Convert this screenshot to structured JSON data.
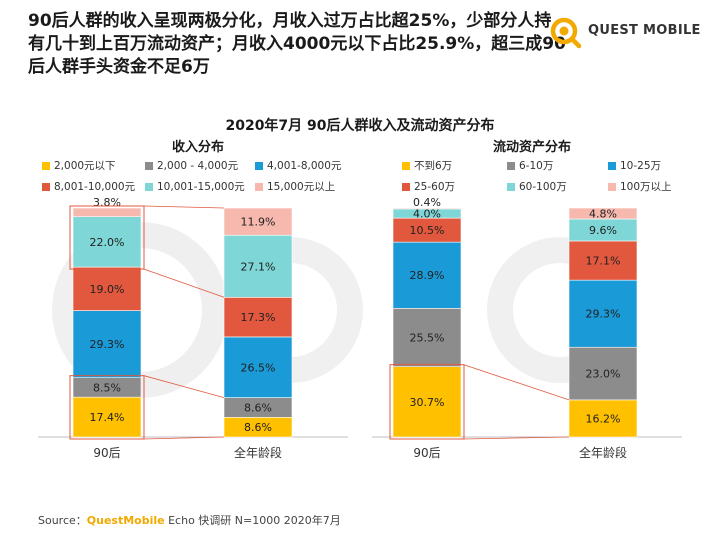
{
  "headline": "90后人群的收入呈现两极分化，月收入过万占比超25%，少部分人持有几十到上百万流动资产；月收入4000元以下占比25.9%，超三成90后人群手头资金不足6万",
  "logo": {
    "name": "QUEST MOBILE"
  },
  "colors": {
    "accent": "#f2a900",
    "yellow": "#ffc000",
    "gray": "#8c8c8c",
    "blue": "#1a9ad6",
    "red": "#e2583e",
    "cyan": "#7fd6d6",
    "pink": "#f7b8ae",
    "highlight": "#e2583e"
  },
  "source": {
    "prefix": "Source：",
    "brand": "QuestMobile",
    "text": " Echo 快调研 N=1000 2020年7月"
  },
  "chart_data": [
    {
      "type": "bar",
      "stacked": true,
      "title": "2020年7月 90后人群收入及流动资产分布",
      "subtitle": "收入分布",
      "categories": [
        "90后",
        "全年龄段"
      ],
      "ylim": [
        0,
        100
      ],
      "legend_position": "top",
      "series": [
        {
          "name": "2,000元以下",
          "color": "#ffc000",
          "values": [
            17.4,
            8.6
          ]
        },
        {
          "name": "2,000 - 4,000元",
          "color": "#8c8c8c",
          "values": [
            8.5,
            8.6
          ]
        },
        {
          "name": "4,001-8,000元",
          "color": "#1a9ad6",
          "values": [
            29.3,
            26.5
          ]
        },
        {
          "name": "8,001-10,000元",
          "color": "#e2583e",
          "values": [
            19.0,
            17.3
          ]
        },
        {
          "name": "10,001-15,000元",
          "color": "#7fd6d6",
          "values": [
            22.0,
            27.1
          ]
        },
        {
          "name": "15,000元以上",
          "color": "#f7b8ae",
          "values": [
            3.8,
            11.9
          ]
        }
      ],
      "labels": [
        [
          "17.4%",
          "8.5%",
          "29.3%",
          "19.0%",
          "22.0%",
          "3.8%"
        ],
        [
          "8.6%",
          "8.6%",
          "26.5%",
          "17.3%",
          "27.1%",
          "11.9%"
        ]
      ],
      "highlight_groups": [
        [
          0,
          1
        ],
        [
          4,
          5
        ]
      ]
    },
    {
      "type": "bar",
      "stacked": true,
      "subtitle": "流动资产分布",
      "categories": [
        "90后",
        "全年龄段"
      ],
      "ylim": [
        0,
        100
      ],
      "legend_position": "top",
      "series": [
        {
          "name": "不到6万",
          "color": "#ffc000",
          "values": [
            30.7,
            16.2
          ]
        },
        {
          "name": "6-10万",
          "color": "#8c8c8c",
          "values": [
            25.5,
            23.0
          ]
        },
        {
          "name": "10-25万",
          "color": "#1a9ad6",
          "values": [
            28.9,
            29.3
          ]
        },
        {
          "name": "25-60万",
          "color": "#e2583e",
          "values": [
            10.5,
            17.1
          ]
        },
        {
          "name": "60-100万",
          "color": "#7fd6d6",
          "values": [
            4.0,
            9.6
          ]
        },
        {
          "name": "100万以上",
          "color": "#f7b8ae",
          "values": [
            0.4,
            4.8
          ]
        }
      ],
      "labels": [
        [
          "30.7%",
          "25.5%",
          "28.9%",
          "10.5%",
          "4.0%",
          "0.4%"
        ],
        [
          "16.2%",
          "23.0%",
          "29.3%",
          "17.1%",
          "9.6%",
          "4.8%"
        ]
      ],
      "highlight_groups": [
        [
          0,
          0
        ]
      ]
    }
  ]
}
